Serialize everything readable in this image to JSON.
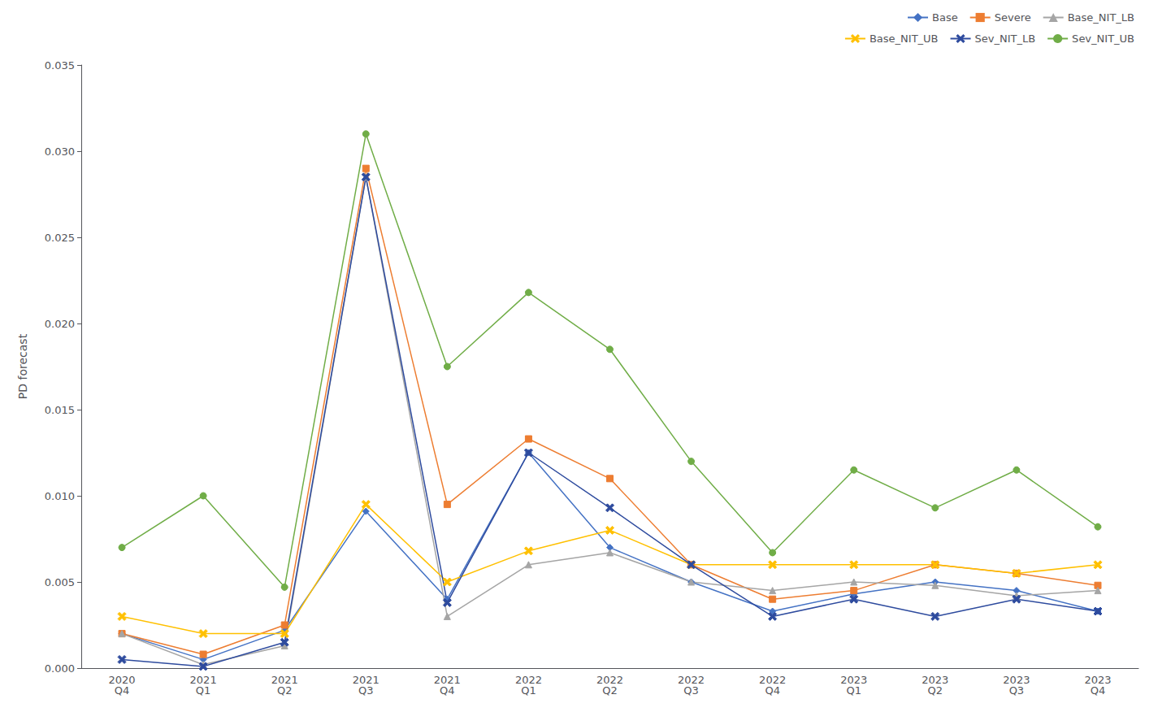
{
  "chart_data": {
    "type": "line",
    "categories": [
      "2020\nQ4",
      "2021\nQ1",
      "2021\nQ2",
      "2021\nQ3",
      "2021\nQ4",
      "2022\nQ1",
      "2022\nQ2",
      "2022\nQ3",
      "2022\nQ4",
      "2023\nQ1",
      "2023\nQ2",
      "2023\nQ3",
      "2023\nQ4"
    ],
    "series": [
      {
        "name": "Base",
        "color": "#4472C4",
        "marker": "diamond",
        "line_style": "solid",
        "values": [
          0.002,
          0.0005,
          0.0022,
          0.0091,
          0.004,
          0.0125,
          0.007,
          0.005,
          0.0033,
          0.0043,
          0.005,
          0.0045,
          0.0033
        ]
      },
      {
        "name": "Severe",
        "color": "#ED7D31",
        "marker": "square",
        "line_style": "solid",
        "values": [
          0.002,
          0.0008,
          0.0025,
          0.029,
          0.0095,
          0.0133,
          0.011,
          0.006,
          0.004,
          0.0045,
          0.006,
          0.0055,
          0.0048
        ]
      },
      {
        "name": "Base_NIT_LB",
        "color": "#A5A5A5",
        "marker": "triangle",
        "line_style": "solid",
        "values": [
          0.002,
          0.0002,
          0.0013,
          0.0285,
          0.003,
          0.006,
          0.0067,
          0.005,
          0.0045,
          0.005,
          0.0048,
          0.0042,
          0.0045
        ]
      },
      {
        "name": "Base_NIT_UB",
        "color": "#FFC000",
        "marker": "x",
        "line_style": "solid",
        "values": [
          0.003,
          0.002,
          0.002,
          0.0095,
          0.005,
          0.0068,
          0.008,
          0.006,
          0.006,
          0.006,
          0.006,
          0.0055,
          0.006
        ]
      },
      {
        "name": "Sev_NIT_LB",
        "color": "#2E4B9E",
        "marker": "x",
        "line_style": "solid",
        "values": [
          0.0005,
          0.0001,
          0.0015,
          0.0285,
          0.0038,
          0.0125,
          0.0093,
          0.006,
          0.003,
          0.004,
          0.003,
          0.004,
          0.0033
        ]
      },
      {
        "name": "Sev_NIT_UB",
        "color": "#70AD47",
        "marker": "circle",
        "line_style": "solid",
        "values": [
          0.007,
          0.01,
          0.0047,
          0.031,
          0.0175,
          0.0218,
          0.0185,
          0.012,
          0.0067,
          0.0115,
          0.0093,
          0.0115,
          0.0082
        ]
      }
    ],
    "ylabel": "PD forecast",
    "ylim": [
      0,
      0.035
    ],
    "yticks": [
      {
        "value": 0,
        "label": "0.000"
      },
      0.005,
      {
        "value": 0.01,
        "label": "0.010"
      },
      0.015,
      {
        "value": 0.02,
        "label": "0.020"
      },
      0.025,
      {
        "value": 0.03,
        "label": "0.030"
      },
      0.035
    ],
    "grid": false,
    "legend": "upper right"
  }
}
